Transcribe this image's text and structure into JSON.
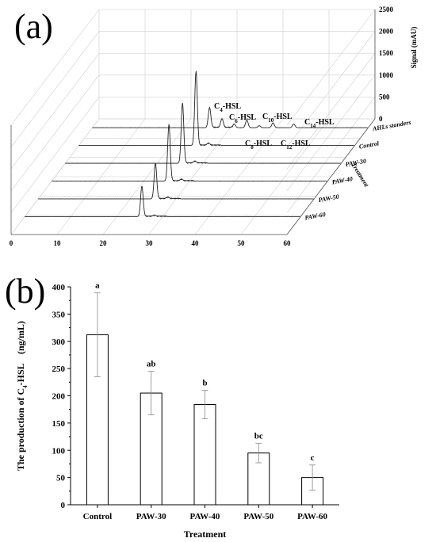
{
  "figure": {
    "panel_a": "(a)",
    "panel_b": "(b)"
  },
  "chart_data": [
    {
      "type": "line",
      "panel": "(a)",
      "xlabel": "",
      "zlabel": "Signal (mAU)",
      "ylabel": "Treatment",
      "xlim": [
        0,
        60
      ],
      "zlim": [
        0,
        2500
      ],
      "x_ticks": [
        "0",
        "10",
        "20",
        "30",
        "40",
        "50",
        "60"
      ],
      "z_ticks": [
        "0",
        "500",
        "1000",
        "1500",
        "2000",
        "2500"
      ],
      "series_labels": [
        "AHLs standers",
        "Control",
        "PAW-30",
        "PAW-40",
        "PAW-50",
        "PAW-60"
      ],
      "series": [
        {
          "name": "AHLs standers",
          "peaks": [
            [
              25.5,
              460
            ],
            [
              28.2,
              200
            ],
            [
              30.9,
              75
            ],
            [
              33.6,
              175
            ],
            [
              36.3,
              45
            ],
            [
              39.3,
              110
            ],
            [
              43.8,
              85
            ]
          ]
        },
        {
          "name": "Control",
          "peaks": [
            [
              25.5,
              1700
            ],
            [
              28.2,
              45
            ]
          ]
        },
        {
          "name": "PAW-30",
          "peaks": [
            [
              25.5,
              1380
            ],
            [
              28.2,
              40
            ]
          ]
        },
        {
          "name": "PAW-40",
          "peaks": [
            [
              25.5,
              1300
            ],
            [
              28.2,
              35
            ]
          ]
        },
        {
          "name": "PAW-50",
          "peaks": [
            [
              25.5,
              820
            ],
            [
              28.2,
              30
            ]
          ]
        },
        {
          "name": "PAW-60",
          "peaks": [
            [
              25.5,
              700
            ],
            [
              28.2,
              25
            ]
          ]
        }
      ],
      "peak_labels": [
        {
          "base": "C",
          "sub": "4",
          "rest": "-HSL"
        },
        {
          "base": "C",
          "sub": "6",
          "rest": "-HSL"
        },
        {
          "base": "C",
          "sub": "8",
          "rest": "-HSL"
        },
        {
          "base": "C",
          "sub": "10",
          "rest": "-HSL"
        },
        {
          "base": "C",
          "sub": "12",
          "rest": "-HSL"
        },
        {
          "base": "C",
          "sub": "14",
          "rest": "-HSL"
        }
      ]
    },
    {
      "type": "bar",
      "panel": "(b)",
      "categories": [
        "Control",
        "PAW-30",
        "PAW-40",
        "PAW-50",
        "PAW-60"
      ],
      "values": [
        312,
        205,
        184,
        95,
        50
      ],
      "errors": [
        77,
        40,
        26,
        18,
        23
      ],
      "letters": [
        "a",
        "ab",
        "b",
        "bc",
        "c"
      ],
      "xlabel": "Treatment",
      "ylabel": {
        "base": "The production of C",
        "sub": "4",
        "rest": "-HSL　(ng/mL)"
      },
      "ylim": [
        0,
        400
      ],
      "yticks": [
        0,
        50,
        100,
        150,
        200,
        250,
        300,
        350,
        400
      ],
      "grid": false
    }
  ]
}
